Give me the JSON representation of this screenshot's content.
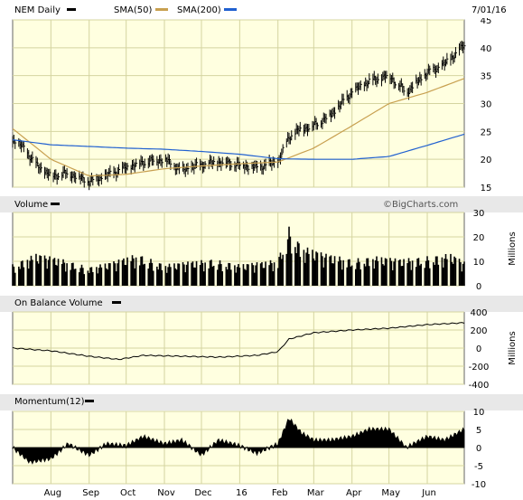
{
  "chart_data": [
    {
      "type": "line",
      "panel": "price",
      "header": {
        "ticker": "NEM Daily",
        "date": "7/01/16",
        "legend": [
          {
            "label": "SMA(50)",
            "color": "#c8a050"
          },
          {
            "label": "SMA(200)",
            "color": "#2060d0"
          }
        ]
      },
      "y_ticks": [
        "15",
        "20",
        "25",
        "30",
        "35",
        "40",
        "45"
      ],
      "ylim": [
        15,
        45
      ],
      "x_ticks": [
        "Aug",
        "Sep",
        "Oct",
        "Nov",
        "Dec",
        "16",
        "Feb",
        "Mar",
        "Apr",
        "May",
        "Jun"
      ],
      "series": [
        {
          "name": "NEM Daily",
          "color": "#000000",
          "x": [
            "2015-07-01",
            "2015-07-10",
            "2015-07-20",
            "2015-08-01",
            "2015-08-15",
            "2015-09-01",
            "2015-09-15",
            "2015-10-01",
            "2015-10-15",
            "2015-11-01",
            "2015-11-15",
            "2015-12-01",
            "2015-12-15",
            "2016-01-01",
            "2016-01-15",
            "2016-02-01",
            "2016-02-10",
            "2016-02-20",
            "2016-03-01",
            "2016-03-15",
            "2016-04-01",
            "2016-04-15",
            "2016-05-01",
            "2016-05-15",
            "2016-06-01",
            "2016-06-15",
            "2016-07-01"
          ],
          "values": [
            23.5,
            22,
            19,
            17,
            17.5,
            16,
            17,
            18.5,
            19.5,
            20,
            18,
            19,
            19.5,
            19,
            18.5,
            19.5,
            24,
            25.5,
            26,
            28,
            32,
            34,
            35,
            32,
            35.5,
            37,
            40.5
          ]
        },
        {
          "name": "SMA(50)",
          "color": "#c8a050",
          "x": [
            "2015-07-01",
            "2015-08-01",
            "2015-09-01",
            "2015-10-01",
            "2015-11-01",
            "2015-12-01",
            "2016-01-01",
            "2016-02-01",
            "2016-03-01",
            "2016-04-01",
            "2016-05-01",
            "2016-06-01",
            "2016-07-01"
          ],
          "values": [
            25.5,
            20,
            17,
            17.3,
            18.3,
            18.8,
            19.2,
            19.5,
            22,
            26,
            30,
            32,
            34.5
          ]
        },
        {
          "name": "SMA(200)",
          "color": "#2060d0",
          "x": [
            "2015-07-01",
            "2015-08-01",
            "2015-09-01",
            "2015-10-01",
            "2015-11-01",
            "2015-12-01",
            "2016-01-01",
            "2016-02-01",
            "2016-03-01",
            "2016-04-01",
            "2016-05-01",
            "2016-06-01",
            "2016-07-01"
          ],
          "values": [
            23.5,
            22.6,
            22.3,
            22.0,
            21.8,
            21.4,
            20.9,
            20.1,
            20.0,
            20.0,
            20.5,
            22.5,
            24.5
          ]
        }
      ]
    },
    {
      "type": "area",
      "panel": "volume",
      "title": "Volume",
      "ylabel": "Millions",
      "y_ticks": [
        "0",
        "10",
        "20",
        "30"
      ],
      "ylim": [
        0,
        30
      ],
      "x": [
        "2015-07-01",
        "2015-07-20",
        "2015-08-10",
        "2015-09-01",
        "2015-09-20",
        "2015-10-10",
        "2015-11-01",
        "2015-11-20",
        "2015-12-10",
        "2016-01-01",
        "2016-01-20",
        "2016-02-01",
        "2016-02-10",
        "2016-02-20",
        "2016-03-10",
        "2016-04-01",
        "2016-04-20",
        "2016-05-10",
        "2016-06-01",
        "2016-06-20",
        "2016-07-01"
      ],
      "values": [
        8,
        12,
        10,
        7,
        9,
        12,
        8,
        9,
        10,
        8,
        9,
        10,
        22,
        15,
        12,
        10,
        11,
        10,
        11,
        12,
        9
      ]
    },
    {
      "type": "line",
      "panel": "obv",
      "title": "On Balance Volume",
      "ylabel": "Millions",
      "y_ticks": [
        "400",
        "200",
        "0",
        "-200",
        "-400"
      ],
      "ylim": [
        -400,
        400
      ],
      "x": [
        "2015-07-01",
        "2015-08-01",
        "2015-09-01",
        "2015-09-25",
        "2015-10-15",
        "2015-11-15",
        "2015-12-15",
        "2016-01-15",
        "2016-02-01",
        "2016-02-10",
        "2016-03-01",
        "2016-04-01",
        "2016-05-01",
        "2016-06-01",
        "2016-07-01"
      ],
      "values": [
        0,
        -30,
        -90,
        -125,
        -80,
        -90,
        -100,
        -80,
        -40,
        100,
        170,
        200,
        220,
        260,
        280
      ]
    },
    {
      "type": "area",
      "panel": "momentum",
      "title": "Momentum(12)",
      "y_ticks": [
        "10",
        "5",
        "0",
        "-5",
        "-10"
      ],
      "ylim": [
        -10,
        10
      ],
      "x": [
        "2015-07-01",
        "2015-07-15",
        "2015-08-01",
        "2015-08-15",
        "2015-09-01",
        "2015-09-15",
        "2015-10-01",
        "2015-10-15",
        "2015-11-01",
        "2015-11-15",
        "2015-12-01",
        "2015-12-15",
        "2016-01-01",
        "2016-01-15",
        "2016-02-01",
        "2016-02-10",
        "2016-02-20",
        "2016-03-01",
        "2016-03-15",
        "2016-04-01",
        "2016-04-15",
        "2016-05-01",
        "2016-05-15",
        "2016-06-01",
        "2016-06-15",
        "2016-07-01"
      ],
      "values": [
        0,
        -4,
        -3,
        1,
        -2,
        1,
        0.5,
        3,
        1,
        2,
        -2,
        2,
        0.5,
        -1.5,
        1,
        8,
        4,
        2,
        2,
        3,
        5,
        5,
        0,
        3,
        2,
        5
      ]
    }
  ],
  "watermark": "©BigCharts.com"
}
